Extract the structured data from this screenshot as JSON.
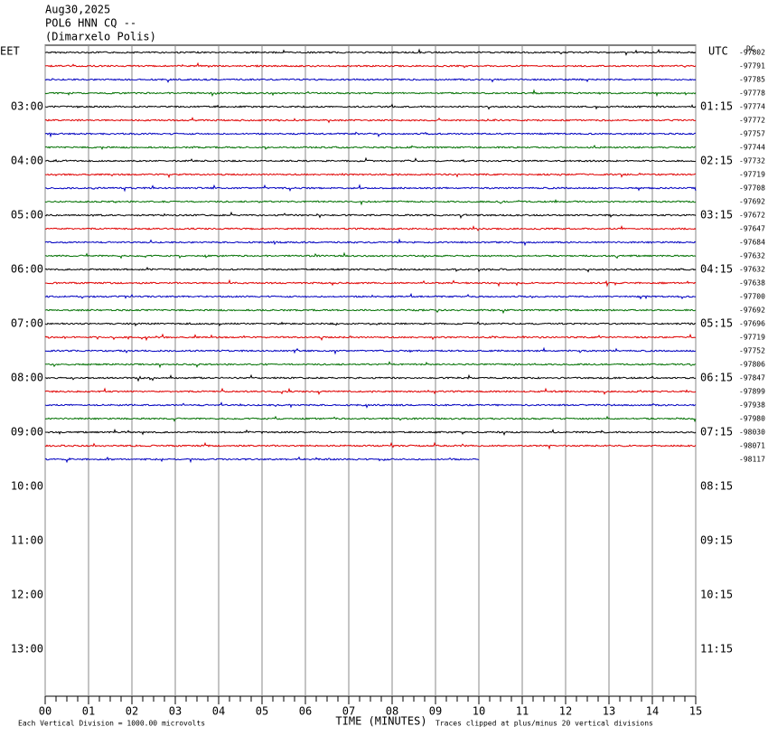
{
  "header": {
    "date": "Aug30,2025",
    "station": "POL6 HNN CQ --",
    "location": "(Dimarxelo Polis)"
  },
  "left_zone": "EET",
  "right_zone": "UTC",
  "dc": "DC",
  "left_times": [
    "03:00",
    "04:00",
    "05:00",
    "06:00",
    "07:00",
    "08:00",
    "09:00",
    "10:00",
    "11:00",
    "12:00",
    "13:00"
  ],
  "right_times": [
    "01:15",
    "02:15",
    "03:15",
    "04:15",
    "05:15",
    "06:15",
    "07:15",
    "08:15",
    "09:15",
    "10:15",
    "11:15"
  ],
  "trace_colors": [
    "#000000",
    "#e00000",
    "#0000c0",
    "#007000"
  ],
  "trace_offsets": [
    "-97802",
    "-97791",
    "-97785",
    "-97778",
    "-97774",
    "-97772",
    "-97757",
    "-97744",
    "-97732",
    "-97719",
    "-97708",
    "-97692",
    "-97672",
    "-97647",
    "-97684",
    "-97632",
    "-97632",
    "-97638",
    "-97700",
    "-97692",
    "-97696",
    "-97719",
    "-97752",
    "-97806",
    "-97847",
    "-97899",
    "-97938",
    "-97980",
    "-98030",
    "-98071",
    "-98117"
  ],
  "x_axis": {
    "title": "TIME (MINUTES)",
    "ticks": [
      "00",
      "01",
      "02",
      "03",
      "04",
      "05",
      "06",
      "07",
      "08",
      "09",
      "10",
      "11",
      "12",
      "13",
      "14",
      "15"
    ]
  },
  "footer": {
    "scale": "Each Vertical Division = 1000.00 microvolts",
    "clip": "Traces clipped at plus/minus 20 vertical divisions"
  }
}
